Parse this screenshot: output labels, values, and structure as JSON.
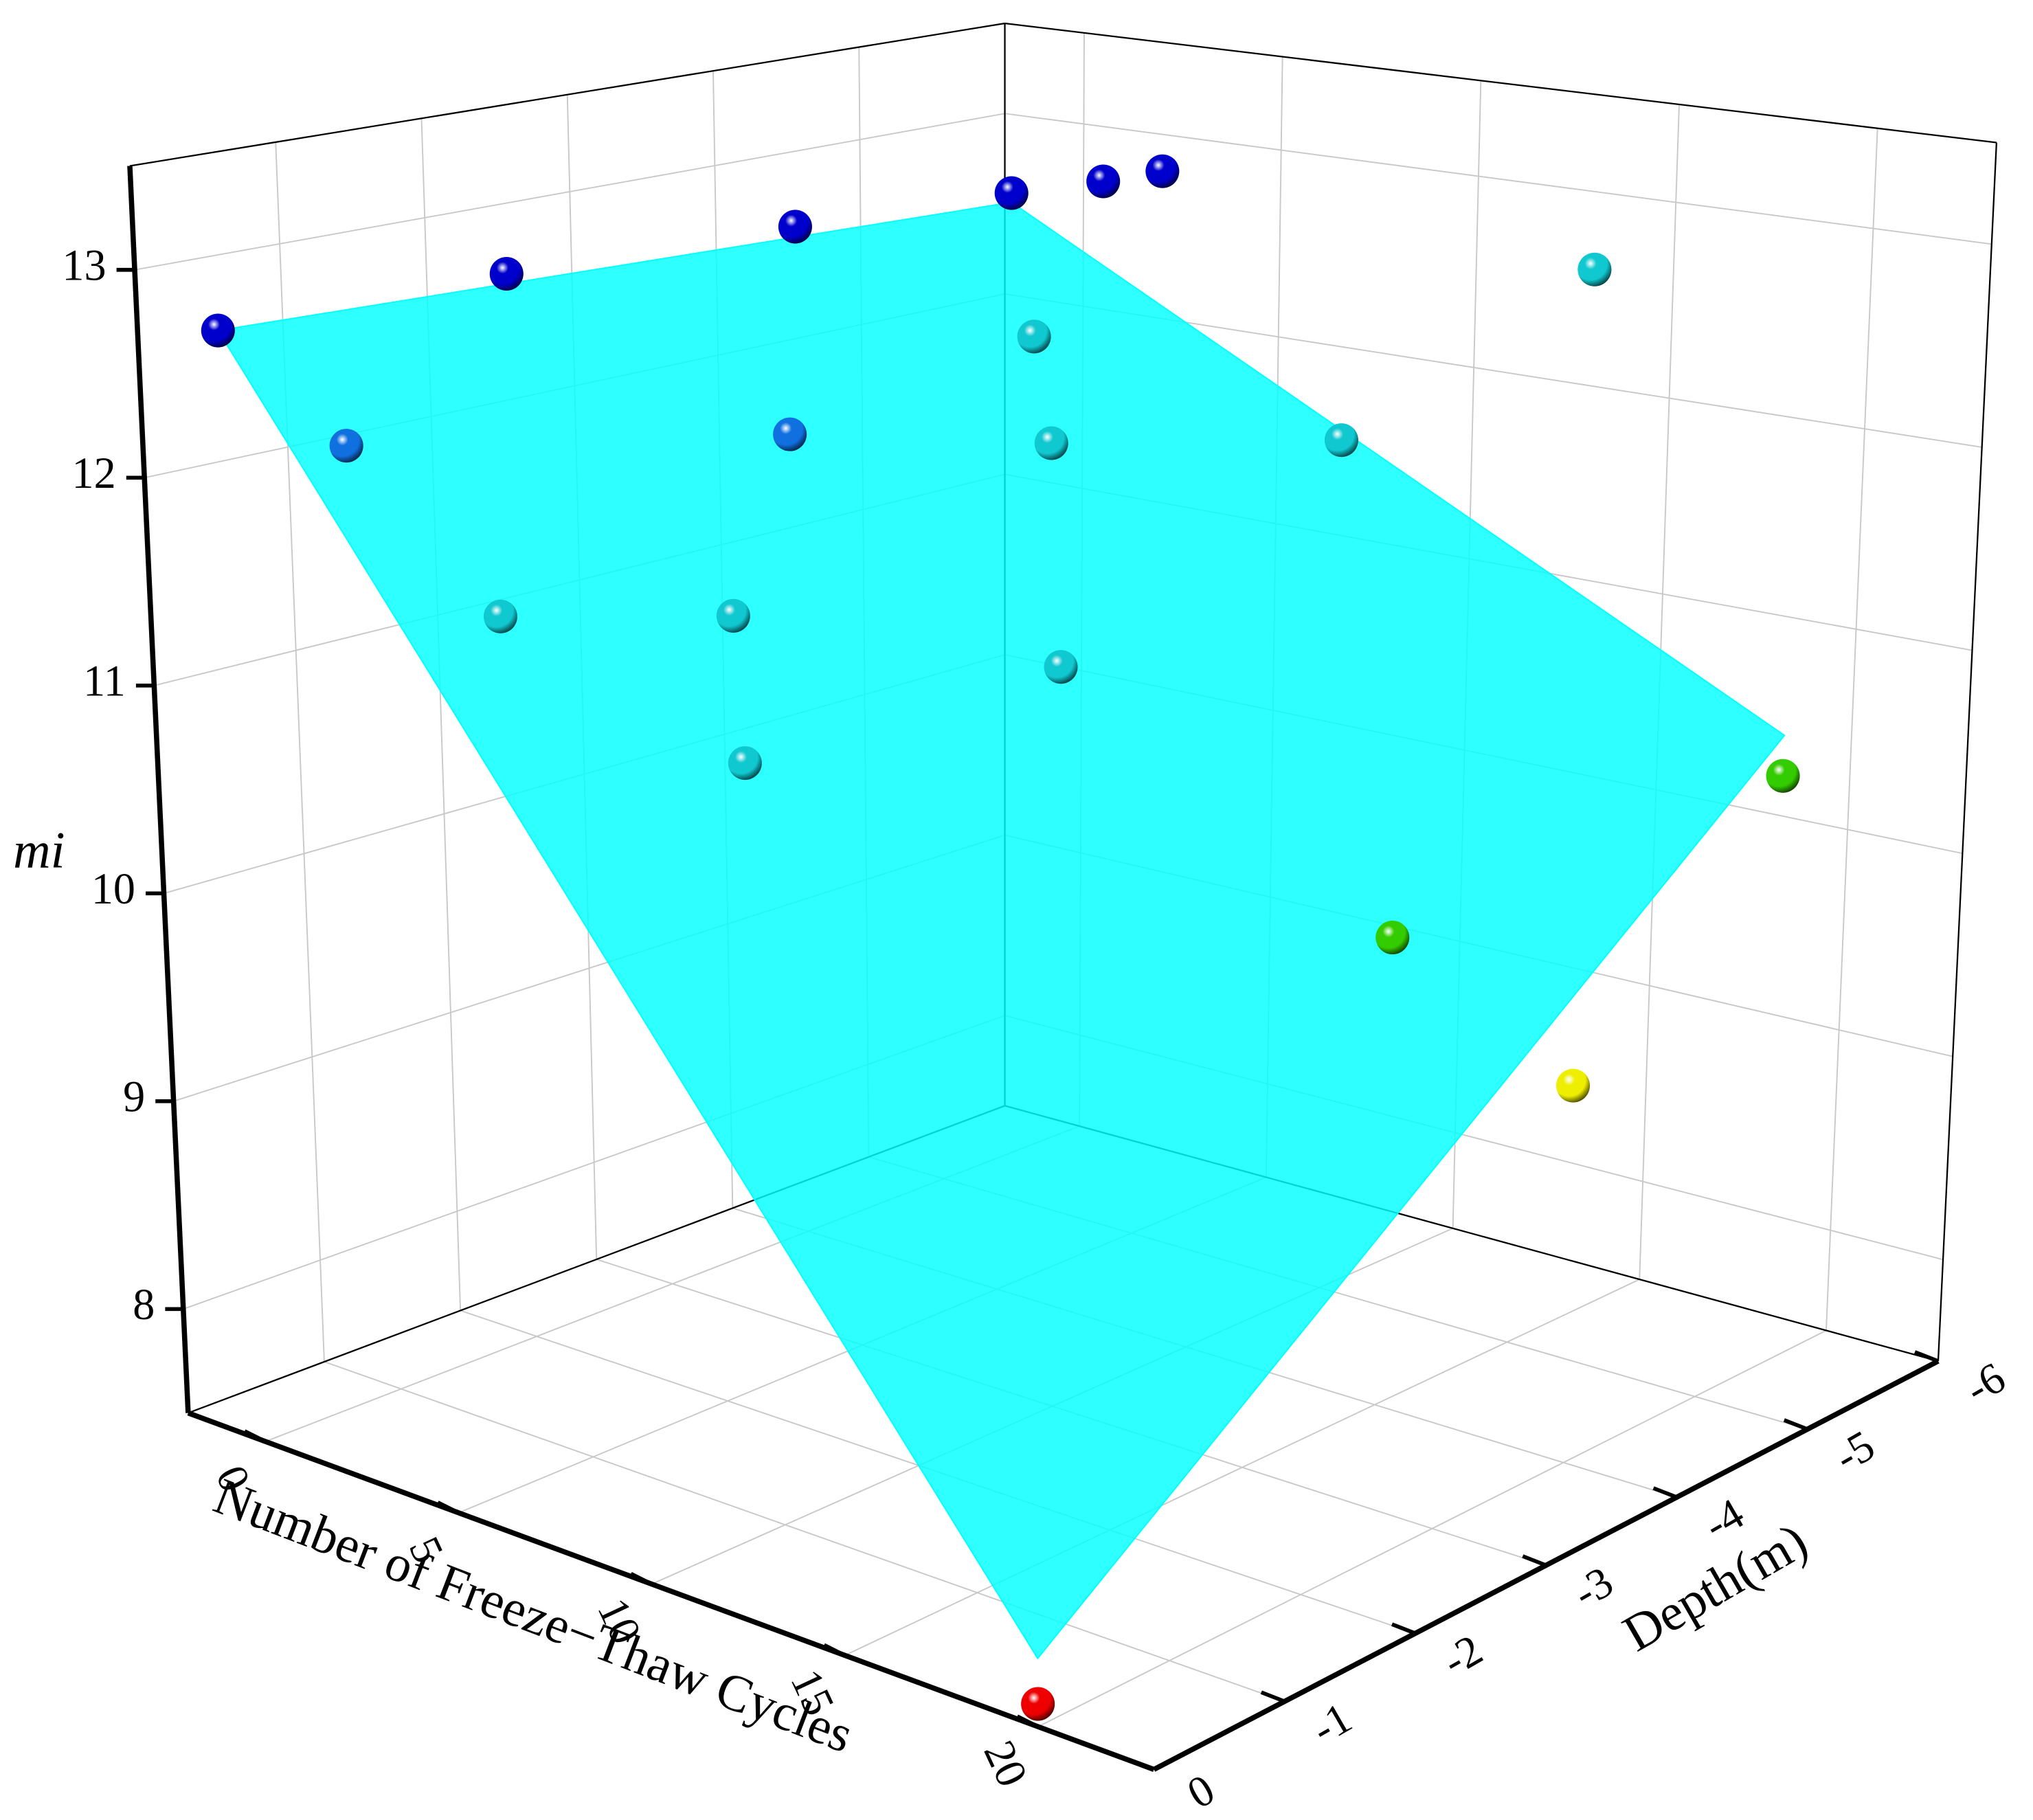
{
  "chart_data": {
    "type": "scatter3d",
    "x_label": "Number of Freeze−Thaw Cycles",
    "y_label": "Depth(m)",
    "z_label": "mi",
    "xlim": [
      -2,
      23
    ],
    "ylim": [
      0,
      -6
    ],
    "zlim": [
      7.5,
      13.5
    ],
    "xticks": [
      0,
      5,
      10,
      15,
      20
    ],
    "yticks": [
      0,
      -1,
      -2,
      -3,
      -4,
      -5,
      -6
    ],
    "zticks": [
      8,
      9,
      10,
      11,
      12,
      13
    ],
    "grid": true,
    "surface": {
      "color": "#00ffff",
      "x": [
        0,
        20
      ],
      "y": [
        0,
        -5.5
      ],
      "z": [
        [
          12.8,
          12.65
        ],
        [
          7.8,
          10.6
        ]
      ]
    },
    "series": [
      {
        "color": "#0000cc",
        "x": [
          0,
          0,
          0,
          0,
          0.5,
          2
        ],
        "y": [
          0,
          -2,
          -4,
          -5.5,
          -6,
          -6
        ],
        "z": [
          12.8,
          12.8,
          12.75,
          12.7,
          12.7,
          12.8
        ]
      },
      {
        "color": "#1070e0",
        "x": [
          2,
          7
        ],
        "y": [
          -0.3,
          -2
        ],
        "z": [
          12.3,
          12.3
        ]
      },
      {
        "color": "#10c8d0",
        "x": [
          5,
          8,
          10,
          6,
          10,
          12,
          12,
          13
        ],
        "y": [
          -0.5,
          -1.3,
          -0.8,
          -4,
          -3,
          -2.5,
          -4.5,
          -6
        ],
        "z": [
          11.6,
          11.6,
          11.1,
          12.4,
          12.2,
          11.3,
          12.0,
          12.6
        ]
      },
      {
        "color": "#33cc00",
        "x": [
          20,
          17
        ],
        "y": [
          -5.5,
          -3.5
        ],
        "z": [
          10.4,
          10.0
        ]
      },
      {
        "color": "#eeee00",
        "x": [
          20
        ],
        "y": [
          -4
        ],
        "z": [
          9.3
        ]
      },
      {
        "color": "#ee0000",
        "x": [
          20
        ],
        "y": [
          0
        ],
        "z": [
          7.6
        ]
      }
    ]
  }
}
